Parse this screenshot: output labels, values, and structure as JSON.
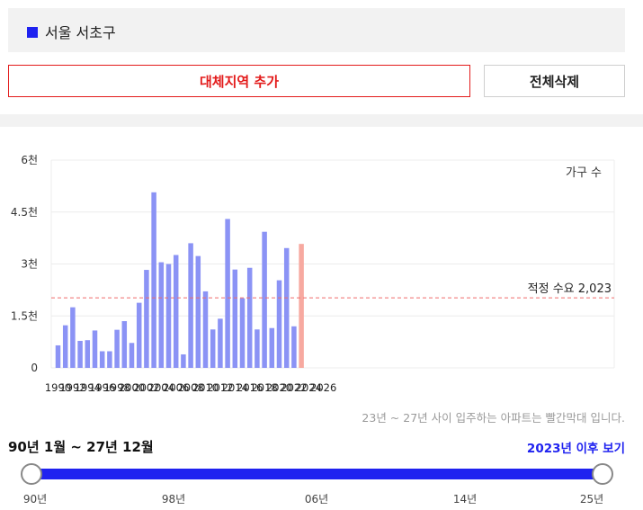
{
  "region": {
    "name": "서울 서초구",
    "color": "#1f22f0"
  },
  "buttons": {
    "add_label": "대체지역 추가",
    "delete_label": "전체삭제"
  },
  "chart_data": {
    "type": "bar",
    "y_unit_label": "가구 수",
    "y_ticks": [
      "0",
      "1.5천",
      "3천",
      "4.5천",
      "6천"
    ],
    "ylim": [
      0,
      6000
    ],
    "x_tick_labels": [
      "1990",
      "1992",
      "1994",
      "1996",
      "1998",
      "2000",
      "2002",
      "2004",
      "2006",
      "2008",
      "2010",
      "2012",
      "2014",
      "2016",
      "2018",
      "2020",
      "2022",
      "2024",
      "2026"
    ],
    "years": [
      1990,
      1991,
      1992,
      1993,
      1994,
      1995,
      1996,
      1997,
      1998,
      1999,
      2000,
      2001,
      2002,
      2003,
      2004,
      2005,
      2006,
      2007,
      2008,
      2009,
      2010,
      2011,
      2012,
      2013,
      2014,
      2015,
      2016,
      2017,
      2018,
      2019,
      2020,
      2021,
      2022,
      2023,
      2024,
      2025,
      2026,
      2027
    ],
    "values": [
      650,
      1230,
      1750,
      780,
      800,
      1080,
      480,
      480,
      1100,
      1350,
      720,
      1880,
      2830,
      5070,
      3050,
      3000,
      3260,
      390,
      3600,
      3230,
      2210,
      1110,
      1420,
      4300,
      2840,
      2010,
      2890,
      1110,
      3930,
      1150,
      2530,
      3460,
      1200,
      3580,
      0,
      0,
      0,
      0
    ],
    "highlight_from_year": 2023,
    "colors": {
      "bar": "#8b93f5",
      "highlight": "#f7a9a0",
      "reference": "#f06b6b"
    },
    "reference_line": {
      "value": 2023,
      "label": "적정 수요 2,023"
    },
    "grid": true
  },
  "note": "23년 ~ 27년 사이 입주하는 아파트는 빨간막대 입니다.",
  "range": {
    "label": "90년 1월 ~ 27년 12월",
    "after_link": "2023년 이후 보기"
  },
  "slider": {
    "ticks": [
      "90년",
      "98년",
      "06년",
      "14년",
      "25년"
    ]
  }
}
